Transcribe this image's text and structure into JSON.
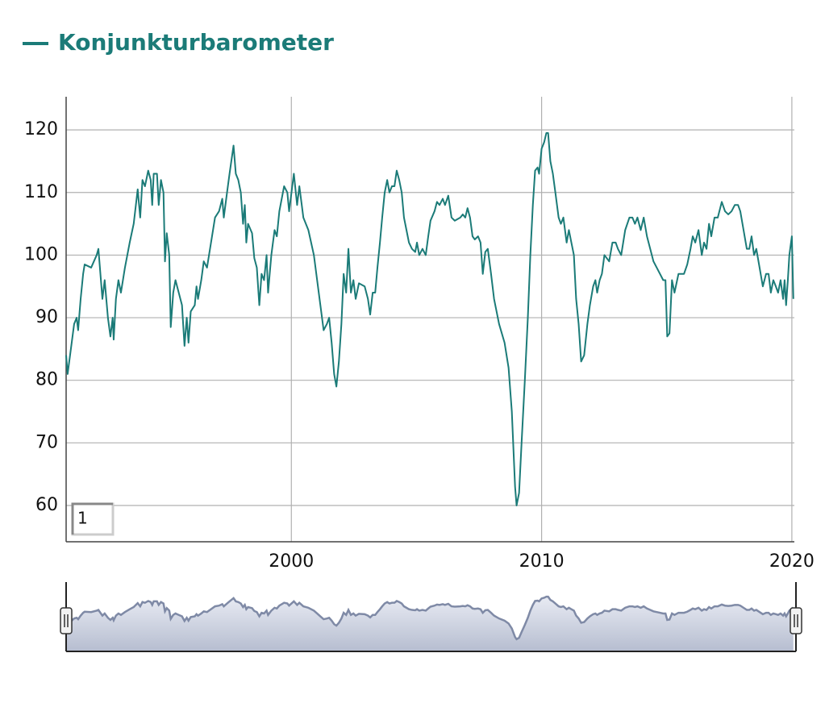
{
  "chart_data": {
    "type": "line",
    "range_input": "1",
    "xlim": [
      1991.0,
      2020.1
    ],
    "xticks": [
      2000,
      2010,
      2020
    ],
    "ylim": [
      54.2,
      125.3
    ],
    "yticks": [
      60,
      70,
      80,
      90,
      100,
      110,
      120
    ],
    "grid": true,
    "legend": "top-left",
    "x": [
      1991.0,
      1991.06,
      1991.32,
      1991.42,
      1991.48,
      1991.58,
      1991.68,
      1991.74,
      1992.0,
      1992.22,
      1992.29,
      1992.45,
      1992.54,
      1992.67,
      1992.77,
      1992.86,
      1992.9,
      1992.99,
      1993.09,
      1993.19,
      1993.35,
      1993.54,
      1993.7,
      1993.86,
      1993.96,
      1994.05,
      1994.15,
      1994.28,
      1994.38,
      1994.44,
      1994.5,
      1994.63,
      1994.7,
      1994.79,
      1994.89,
      1994.95,
      1995.02,
      1995.12,
      1995.18,
      1995.28,
      1995.37,
      1995.5,
      1995.63,
      1995.73,
      1995.82,
      1995.89,
      1995.98,
      1996.14,
      1996.21,
      1996.27,
      1996.4,
      1996.5,
      1996.63,
      1996.79,
      1996.95,
      1997.11,
      1997.24,
      1997.3,
      1997.43,
      1997.53,
      1997.69,
      1997.78,
      1997.88,
      1997.98,
      1998.07,
      1998.14,
      1998.2,
      1998.27,
      1998.43,
      1998.52,
      1998.62,
      1998.72,
      1998.81,
      1998.91,
      1999.01,
      1999.07,
      1999.2,
      1999.33,
      1999.42,
      1999.52,
      1999.71,
      1999.84,
      1999.91,
      2000.1,
      2000.23,
      2000.32,
      2000.48,
      2000.68,
      2000.9,
      2001.03,
      2001.16,
      2001.29,
      2001.42,
      2001.51,
      2001.61,
      2001.71,
      2001.8,
      2001.9,
      2002.0,
      2002.09,
      2002.19,
      2002.28,
      2002.38,
      2002.48,
      2002.57,
      2002.7,
      2002.93,
      2003.06,
      2003.15,
      2003.25,
      2003.35,
      2003.44,
      2003.54,
      2003.63,
      2003.73,
      2003.83,
      2003.92,
      2004.02,
      2004.12,
      2004.21,
      2004.31,
      2004.41,
      2004.5,
      2004.6,
      2004.7,
      2004.82,
      2004.95,
      2005.02,
      2005.11,
      2005.24,
      2005.37,
      2005.47,
      2005.56,
      2005.72,
      2005.82,
      2005.92,
      2006.05,
      2006.14,
      2006.27,
      2006.4,
      2006.53,
      2006.75,
      2006.85,
      2006.95,
      2007.04,
      2007.14,
      2007.24,
      2007.33,
      2007.46,
      2007.56,
      2007.65,
      2007.75,
      2007.85,
      2007.98,
      2008.1,
      2008.3,
      2008.52,
      2008.68,
      2008.81,
      2008.94,
      2009.0,
      2009.1,
      2009.2,
      2009.33,
      2009.45,
      2009.55,
      2009.65,
      2009.74,
      2009.84,
      2009.9,
      2010.0,
      2010.1,
      2010.19,
      2010.26,
      2010.35,
      2010.45,
      2010.55,
      2010.68,
      2010.77,
      2010.87,
      2011.0,
      2011.09,
      2011.19,
      2011.29,
      2011.38,
      2011.48,
      2011.58,
      2011.7,
      2011.83,
      2011.93,
      2012.06,
      2012.15,
      2012.22,
      2012.32,
      2012.41,
      2012.51,
      2012.7,
      2012.83,
      2012.96,
      2013.05,
      2013.18,
      2013.34,
      2013.51,
      2013.63,
      2013.73,
      2013.83,
      2013.96,
      2014.08,
      2014.21,
      2014.34,
      2014.47,
      2014.6,
      2014.73,
      2014.86,
      2014.95,
      2015.02,
      2015.11,
      2015.21,
      2015.31,
      2015.47,
      2015.69,
      2015.82,
      2015.95,
      2016.04,
      2016.14,
      2016.27,
      2016.4,
      2016.49,
      2016.59,
      2016.69,
      2016.78,
      2016.91,
      2017.04,
      2017.2,
      2017.33,
      2017.46,
      2017.59,
      2017.72,
      2017.85,
      2017.94,
      2018.07,
      2018.2,
      2018.3,
      2018.39,
      2018.49,
      2018.58,
      2018.71,
      2018.84,
      2018.97,
      2019.07,
      2019.16,
      2019.26,
      2019.36,
      2019.45,
      2019.55,
      2019.65,
      2019.71,
      2019.77,
      2019.84,
      2019.9,
      2020.0,
      2020.06
    ],
    "series": [
      {
        "name": "Konjunkturbarometer",
        "color": "#1b7b78",
        "values": [
          84,
          81,
          89,
          90,
          88,
          93,
          97,
          98.5,
          98,
          100,
          101,
          93,
          96,
          90,
          87,
          90,
          86.5,
          93,
          96,
          94,
          98,
          102,
          105,
          110.5,
          106,
          112,
          111,
          113.5,
          112,
          108,
          113,
          113,
          108,
          112,
          110,
          99,
          103.5,
          100,
          88.5,
          94,
          96,
          94,
          92,
          85.5,
          90,
          86,
          91,
          92,
          95,
          93,
          96,
          99,
          98,
          102,
          106,
          107,
          109,
          106,
          110,
          113,
          117.5,
          113,
          112,
          110,
          105,
          108,
          102,
          105,
          103.5,
          99.5,
          98,
          92,
          97,
          96,
          100,
          94,
          100,
          104,
          103,
          107,
          111,
          110,
          107,
          113,
          108,
          111,
          106,
          104,
          100,
          96,
          92,
          88,
          89,
          90,
          86,
          81,
          79,
          83,
          89,
          97,
          94,
          101,
          94,
          96,
          93,
          95.5,
          95,
          93,
          90.5,
          94,
          94,
          98,
          102,
          106,
          110,
          112,
          110,
          111,
          111,
          113.5,
          112,
          110,
          106,
          104,
          102,
          101,
          100.5,
          102,
          100,
          101,
          100,
          103,
          105.5,
          107,
          108.5,
          108,
          109,
          108,
          109.5,
          106,
          105.5,
          106,
          106.5,
          106,
          107.5,
          106,
          103,
          102.5,
          103,
          102,
          97,
          100.5,
          101,
          97,
          93,
          89,
          86,
          82,
          75,
          63,
          60,
          62,
          70,
          80,
          90,
          100,
          108,
          113.5,
          114,
          113,
          117,
          118,
          119.5,
          119.5,
          115,
          113,
          110,
          106,
          105,
          106,
          102,
          104,
          102,
          100,
          93,
          89,
          83,
          84,
          89,
          92,
          95,
          96,
          94,
          96,
          97,
          100,
          99,
          102,
          102,
          101,
          100,
          104,
          106,
          106,
          105,
          106,
          104,
          106,
          103,
          101,
          99,
          98,
          97,
          96,
          96,
          87,
          87.5,
          96,
          94,
          97,
          97,
          98.5,
          101,
          103,
          102,
          104,
          100,
          102,
          101,
          105,
          103,
          106,
          106,
          108.5,
          107,
          106.5,
          107,
          108,
          108,
          107,
          104,
          101,
          101,
          103,
          100,
          101,
          98,
          95,
          97,
          97,
          94,
          96,
          95,
          94,
          96,
          93,
          96,
          92,
          96,
          100,
          103,
          93
        ]
      }
    ]
  }
}
